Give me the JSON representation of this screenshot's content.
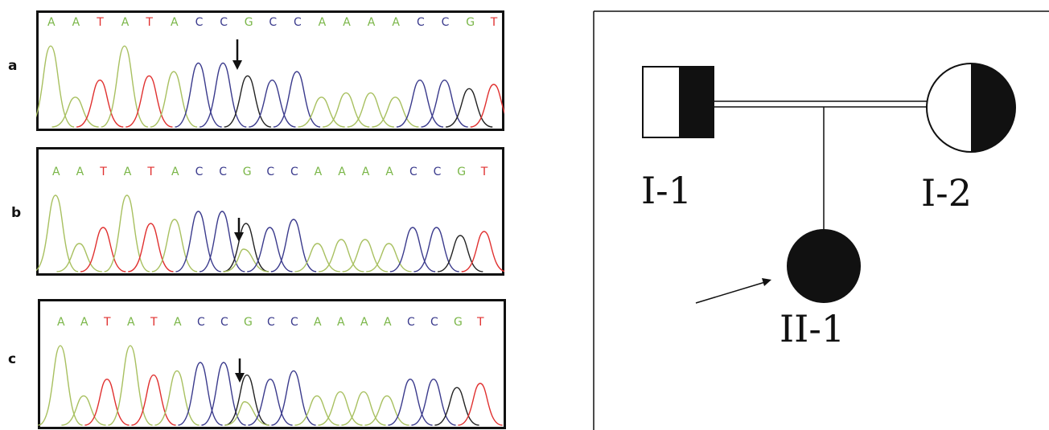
{
  "colors": {
    "A": "#7ab648",
    "T": "#e0302f",
    "C": "#3a3a8c",
    "G": "#7ab648",
    "G_peak": "#222222",
    "A_peak": "#a8c060",
    "frame": "#111111"
  },
  "sequence": [
    "A",
    "A",
    "T",
    "A",
    "T",
    "A",
    "C",
    "C",
    "G",
    "C",
    "C",
    "A",
    "A",
    "A",
    "A",
    "C",
    "C",
    "G",
    "T"
  ],
  "panels": [
    {
      "label": "a",
      "variant": "homozygous-reference"
    },
    {
      "label": "b",
      "variant": "heterozygous"
    },
    {
      "label": "c",
      "variant": "heterozygous"
    }
  ],
  "pedigree": {
    "individuals": [
      {
        "id": "I-1",
        "sex": "male",
        "status": "carrier"
      },
      {
        "id": "I-2",
        "sex": "female",
        "status": "carrier"
      },
      {
        "id": "II-1",
        "sex": "female",
        "status": "affected",
        "proband": true
      }
    ],
    "relationship": "consanguineous"
  }
}
